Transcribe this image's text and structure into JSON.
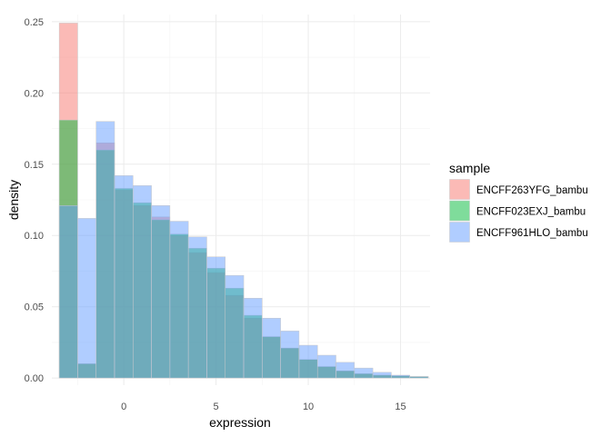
{
  "chart_data": {
    "type": "histogram",
    "xlabel": "expression",
    "ylabel": "density",
    "xlim": [
      -3.9,
      16.6
    ],
    "ylim": [
      -0.005,
      0.255
    ],
    "x_ticks": [
      0,
      5,
      10,
      15
    ],
    "y_ticks": [
      0.0,
      0.05,
      0.1,
      0.15,
      0.2,
      0.25
    ],
    "y_tick_labels": [
      "0.00",
      "0.05",
      "0.10",
      "0.15",
      "0.20",
      "0.25"
    ],
    "x_tick_labels": [
      "0",
      "5",
      "10",
      "15"
    ],
    "bins": [
      -3.5,
      -2.5,
      -1.5,
      -0.5,
      0.5,
      1.5,
      2.5,
      3.5,
      4.5,
      5.5,
      6.5,
      7.5,
      8.5,
      9.5,
      10.5,
      11.5,
      12.5,
      13.5,
      14.5,
      15.5,
      16.5
    ],
    "legend": {
      "title": "sample",
      "position": "right"
    },
    "series": [
      {
        "name": "ENCFF263YFG_bambu",
        "color": "#f8766d",
        "values": [
          0.249,
          0.01,
          0.165,
          0.132,
          0.121,
          0.113,
          0.1,
          0.088,
          0.074,
          0.058,
          0.042,
          0.029,
          0.021,
          0.013,
          0.008,
          0.005,
          0.003,
          0.002,
          0.0015,
          0.001
        ]
      },
      {
        "name": "ENCFF023EXJ_bambu",
        "color": "#00ba38",
        "values": [
          0.181,
          0.01,
          0.16,
          0.133,
          0.123,
          0.111,
          0.101,
          0.091,
          0.077,
          0.063,
          0.044,
          0.029,
          0.021,
          0.013,
          0.008,
          0.005,
          0.003,
          0.002,
          0.0015,
          0.001
        ]
      },
      {
        "name": "ENCFF961HLO_bambu",
        "color": "#619cff",
        "values": [
          0.121,
          0.112,
          0.18,
          0.142,
          0.135,
          0.121,
          0.11,
          0.099,
          0.085,
          0.072,
          0.056,
          0.042,
          0.033,
          0.023,
          0.016,
          0.011,
          0.007,
          0.004,
          0.002,
          0.001
        ]
      }
    ]
  }
}
